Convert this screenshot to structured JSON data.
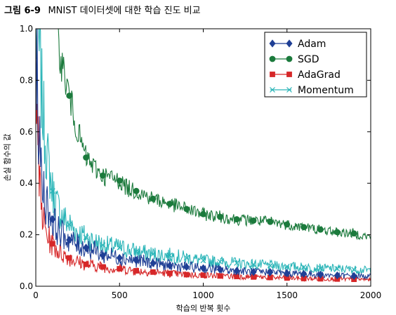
{
  "figure": {
    "number": "그림 6-9",
    "caption": "MNIST 데이터셋에 대한 학습 진도 비교"
  },
  "chart_data": {
    "type": "line",
    "title": "MNIST 데이터셋에 대한 학습 진도 비교",
    "xlabel": "학습의 반복 횟수",
    "ylabel": "손실 함수의 값",
    "xlim": [
      0,
      2000
    ],
    "ylim": [
      0.0,
      1.0
    ],
    "xticks": [
      0,
      500,
      1000,
      1500,
      2000
    ],
    "xtick_labels": [
      "0",
      "500",
      "1000",
      "1500",
      "2000"
    ],
    "yticks": [
      0.0,
      0.2,
      0.4,
      0.6,
      0.8,
      1.0
    ],
    "ytick_labels": [
      "0.0",
      "0.2",
      "0.4",
      "0.6",
      "0.8",
      "1.0"
    ],
    "legend_position": "top-right",
    "grid": false,
    "series": [
      {
        "name": "Adam",
        "color": "#1f3f95",
        "marker": "diamond",
        "x": [
          0,
          20,
          40,
          60,
          80,
          100,
          130,
          160,
          200,
          250,
          300,
          350,
          400,
          450,
          500,
          600,
          700,
          800,
          900,
          1000,
          1100,
          1200,
          1300,
          1400,
          1500,
          1600,
          1700,
          1800,
          1900,
          2000
        ],
        "y": [
          1.0,
          0.55,
          0.4,
          0.33,
          0.29,
          0.26,
          0.22,
          0.2,
          0.18,
          0.16,
          0.15,
          0.14,
          0.12,
          0.12,
          0.11,
          0.1,
          0.09,
          0.08,
          0.075,
          0.07,
          0.065,
          0.06,
          0.055,
          0.055,
          0.05,
          0.048,
          0.045,
          0.042,
          0.04,
          0.038
        ]
      },
      {
        "name": "SGD",
        "color": "#1b7a3c",
        "marker": "circle",
        "x": [
          130,
          150,
          200,
          250,
          300,
          350,
          400,
          450,
          500,
          550,
          600,
          700,
          800,
          900,
          1000,
          1100,
          1200,
          1300,
          1400,
          1500,
          1600,
          1700,
          1800,
          1900,
          2000
        ],
        "y": [
          1.0,
          0.88,
          0.74,
          0.6,
          0.5,
          0.46,
          0.43,
          0.42,
          0.41,
          0.38,
          0.37,
          0.34,
          0.32,
          0.3,
          0.28,
          0.27,
          0.26,
          0.255,
          0.25,
          0.24,
          0.23,
          0.22,
          0.21,
          0.205,
          0.19
        ]
      },
      {
        "name": "AdaGrad",
        "color": "#d62728",
        "marker": "square",
        "x": [
          0,
          20,
          40,
          60,
          80,
          100,
          130,
          160,
          200,
          250,
          300,
          350,
          400,
          450,
          500,
          600,
          700,
          800,
          900,
          1000,
          1100,
          1200,
          1300,
          1400,
          1500,
          1600,
          1700,
          1800,
          1900,
          2000
        ],
        "y": [
          1.0,
          0.4,
          0.27,
          0.21,
          0.18,
          0.165,
          0.14,
          0.125,
          0.11,
          0.095,
          0.085,
          0.08,
          0.075,
          0.07,
          0.068,
          0.06,
          0.055,
          0.05,
          0.045,
          0.043,
          0.04,
          0.038,
          0.036,
          0.034,
          0.032,
          0.03,
          0.029,
          0.028,
          0.027,
          0.026
        ]
      },
      {
        "name": "Momentum",
        "color": "#2bb5b8",
        "marker": "x",
        "x": [
          0,
          20,
          40,
          60,
          80,
          100,
          130,
          160,
          200,
          250,
          300,
          350,
          400,
          450,
          500,
          600,
          700,
          800,
          900,
          1000,
          1100,
          1200,
          1300,
          1400,
          1500,
          1600,
          1700,
          1800,
          1900,
          2000
        ],
        "y": [
          1.0,
          0.9,
          0.7,
          0.55,
          0.45,
          0.37,
          0.31,
          0.27,
          0.24,
          0.21,
          0.19,
          0.175,
          0.16,
          0.155,
          0.15,
          0.135,
          0.125,
          0.12,
          0.11,
          0.1,
          0.095,
          0.09,
          0.085,
          0.08,
          0.077,
          0.074,
          0.07,
          0.068,
          0.065,
          0.062
        ]
      }
    ]
  }
}
